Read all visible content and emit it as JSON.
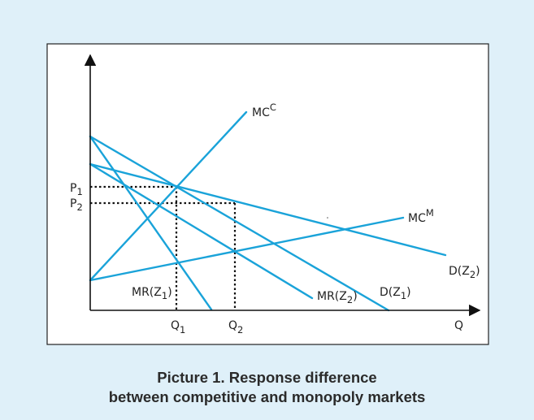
{
  "colors": {
    "background": "#dff0f9",
    "frame_fill": "#ffffff",
    "curve": "#1aa3d9",
    "axis": "#111111",
    "guide": "#111111"
  },
  "diagram": {
    "price_labels": [
      {
        "base": "P",
        "sub": "1"
      },
      {
        "base": "P",
        "sub": "2"
      }
    ],
    "quantity_labels": [
      {
        "base": "Q",
        "sub": "1"
      },
      {
        "base": "Q",
        "sub": "2"
      }
    ],
    "q_axis_label": "Q",
    "curve_labels": {
      "mc_competitive": {
        "base": "MC",
        "sup": "C"
      },
      "mc_monopoly": {
        "base": "MC",
        "sup": "M"
      },
      "mr_z1": {
        "pre": "MR(Z",
        "sub": "1",
        "post": ")"
      },
      "mr_z2": {
        "pre": "MR(Z",
        "sub": "2",
        "post": ")"
      },
      "d_z1": {
        "pre": "D(Z",
        "sub": "1",
        "post": ")"
      },
      "d_z2": {
        "pre": "D(Z",
        "sub": "2",
        "post": ")"
      }
    }
  },
  "caption": {
    "line1": "Picture 1. Response difference",
    "line2": "between competitive and monopoly markets"
  }
}
